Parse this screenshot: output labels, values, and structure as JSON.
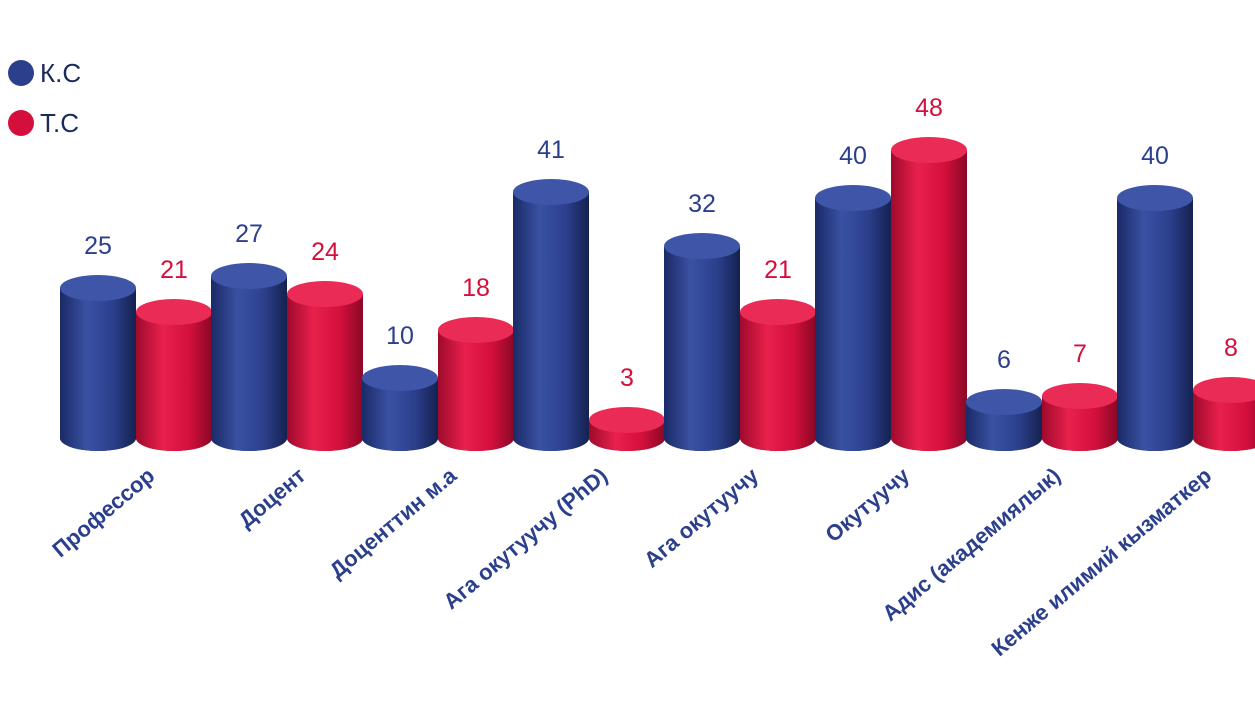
{
  "chart_data": {
    "type": "bar",
    "categories": [
      "Профессор",
      "Доцент",
      "Доценттин м.а",
      "Ага  окутуучу (PhD)",
      "Ага  окутуучу",
      "Окутуучу",
      "Адис (академиялык)",
      "Кенже илимий кызматкер"
    ],
    "series": [
      {
        "name": "К.С",
        "color": "#2b3f8c",
        "values": [
          25,
          27,
          10,
          41,
          32,
          40,
          6,
          40
        ]
      },
      {
        "name": "Т.С",
        "color": "#d40f3c",
        "values": [
          21,
          24,
          18,
          3,
          21,
          48,
          7,
          8
        ]
      }
    ],
    "legend": "top-left",
    "grid": false,
    "style": "3d-cylinder",
    "label_colors": {
      "category": "#2b3f8c",
      "value_ks": "#2b3f8c",
      "value_ts": "#d40f3c"
    }
  }
}
